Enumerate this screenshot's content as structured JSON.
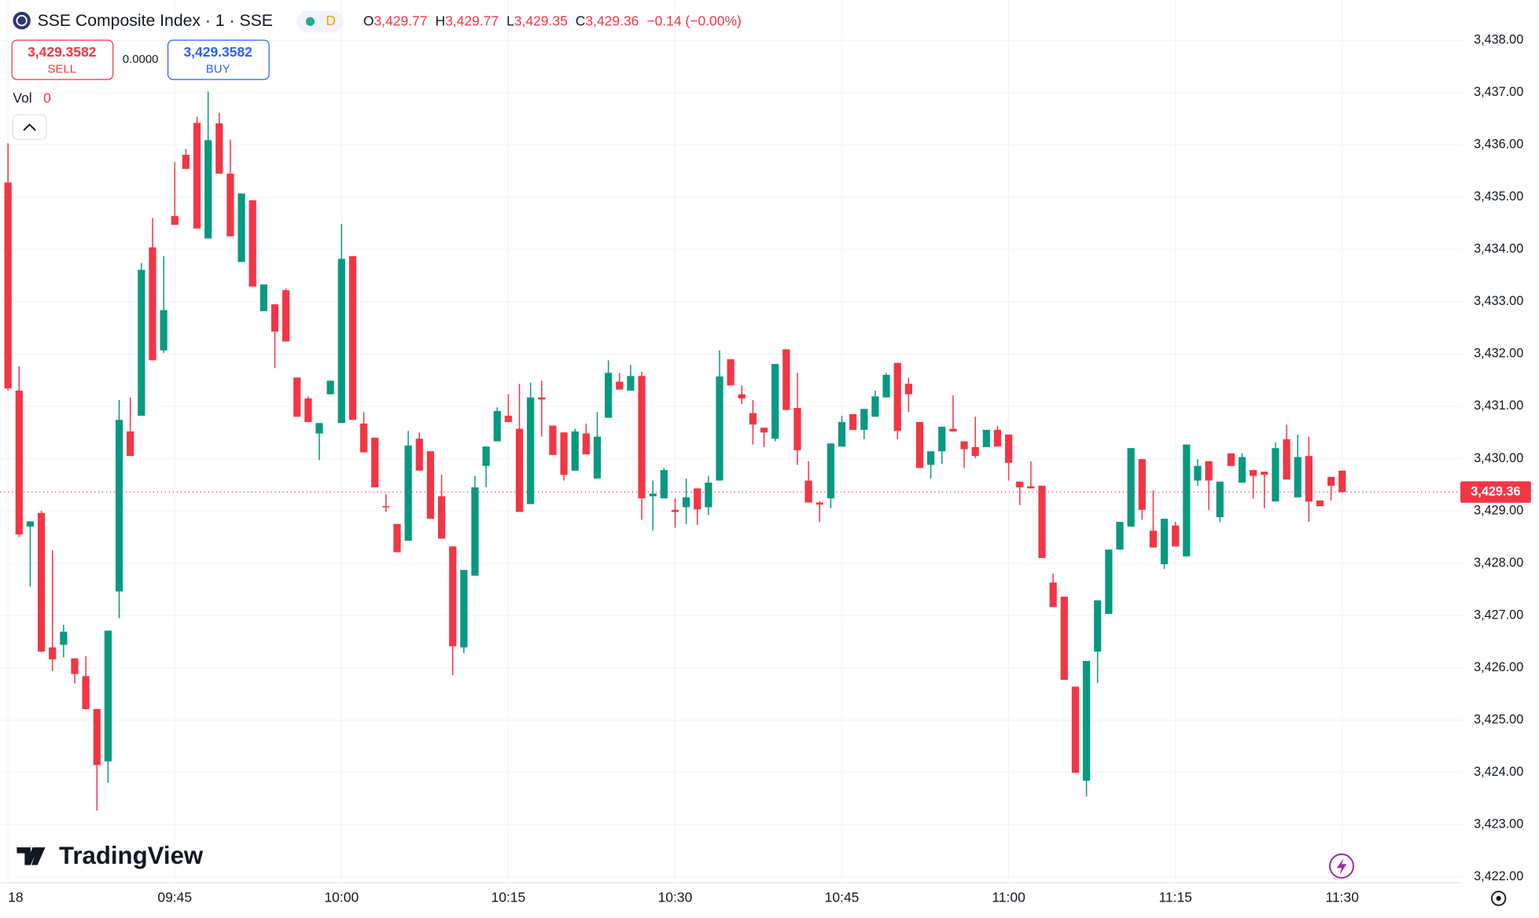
{
  "header": {
    "symbol": "SSE Composite Index · 1 · SSE",
    "interval_badge": "D",
    "ohlc": [
      {
        "key": "O",
        "value": "3,429.77"
      },
      {
        "key": "H",
        "value": "3,429.77"
      },
      {
        "key": "L",
        "value": "3,429.35"
      },
      {
        "key": "C",
        "value": "3,429.36"
      }
    ],
    "change": "−0.14 (−0.00%)"
  },
  "trade": {
    "sell_price": "3,429.3582",
    "sell_label": "SELL",
    "spread": "0.0000",
    "buy_price": "3,429.3582",
    "buy_label": "BUY"
  },
  "volume": {
    "label": "Vol",
    "value": "0"
  },
  "logo": "TradingView",
  "chart_data": {
    "type": "candlestick",
    "categories": [
      "18",
      null,
      null,
      null,
      null,
      null,
      null,
      null,
      null,
      null,
      null,
      null,
      null,
      null,
      null,
      "09:45",
      null,
      null,
      null,
      null,
      null,
      null,
      null,
      null,
      null,
      null,
      null,
      null,
      null,
      null,
      "10:00",
      null,
      null,
      null,
      null,
      null,
      null,
      null,
      null,
      null,
      null,
      null,
      null,
      null,
      null,
      "10:15",
      null,
      null,
      null,
      null,
      null,
      null,
      null,
      null,
      null,
      null,
      null,
      null,
      null,
      null,
      "10:30",
      null,
      null,
      null,
      null,
      null,
      null,
      null,
      null,
      null,
      null,
      null,
      null,
      null,
      null,
      "10:45",
      null,
      null,
      null,
      null,
      null,
      null,
      null,
      null,
      null,
      null,
      null,
      null,
      null,
      null,
      "11:00",
      null,
      null,
      null,
      null,
      null,
      null,
      null,
      null,
      null,
      null,
      null,
      null,
      null,
      null,
      "11:15",
      null,
      null,
      null,
      null,
      null,
      null,
      null,
      null,
      null,
      null,
      null,
      null,
      null,
      null,
      "11:30"
    ],
    "open": [
      3435.28,
      3431.3,
      3428.7,
      3428.96,
      3426.39,
      3426.44,
      3426.18,
      3425.84,
      3425.21,
      3424.21,
      3427.46,
      3430.52,
      3430.82,
      3434.04,
      3432.07,
      3434.64,
      3435.81,
      3436.42,
      3434.21,
      3436.41,
      3435.45,
      3433.76,
      3434.94,
      3432.82,
      3432.95,
      3433.22,
      3431.55,
      3431.15,
      3430.48,
      3431.23,
      3430.68,
      3433.87,
      3430.67,
      3430.4,
      3429.09,
      3428.75,
      3428.43,
      3430.38,
      3430.14,
      3429.28,
      3428.32,
      3426.39,
      3427.76,
      3429.86,
      3430.33,
      3430.82,
      3430.57,
      3429.13,
      3431.17,
      3430.63,
      3430.5,
      3429.77,
      3430.48,
      3429.62,
      3430.78,
      3431.47,
      3431.3,
      3431.58,
      3429.28,
      3429.24,
      3429.02,
      3429.07,
      3429.43,
      3429.07,
      3429.58,
      3431.9,
      3431.23,
      3430.87,
      3430.59,
      3430.38,
      3432.09,
      3430.97,
      3429.58,
      3429.16,
      3429.24,
      3430.23,
      3430.85,
      3430.55,
      3430.8,
      3431.17,
      3431.83,
      3431.43,
      3430.7,
      3429.88,
      3430.14,
      3430.57,
      3430.33,
      3430.22,
      3430.22,
      3430.55,
      3430.46,
      3429.56,
      3429.47,
      3429.48,
      3427.63,
      3427.36,
      3425.64,
      3423.84,
      3426.31,
      3427.03,
      3428.26,
      3428.7,
      3429.99,
      3428.62,
      3427.98,
      3428.72,
      3428.13,
      3429.58,
      3429.95,
      3428.88,
      3430.1,
      3429.54,
      3429.78,
      3429.75,
      3429.18,
      3430.37,
      3429.26,
      3430.05,
      3429.2,
      3429.65,
      3429.77
    ],
    "high": [
      3436.03,
      3431.77,
      3428.8,
      3429.0,
      3428.25,
      3426.82,
      3426.18,
      3426.22,
      3425.21,
      3426.71,
      3431.12,
      3431.17,
      3433.74,
      3434.6,
      3433.87,
      3435.67,
      3435.92,
      3436.54,
      3437.02,
      3436.61,
      3436.1,
      3435.07,
      3434.94,
      3433.33,
      3432.95,
      3433.25,
      3431.55,
      3431.19,
      3430.68,
      3431.49,
      3434.49,
      3433.87,
      3430.89,
      3430.4,
      3429.32,
      3428.75,
      3430.53,
      3430.5,
      3430.14,
      3429.69,
      3428.32,
      3427.87,
      3429.67,
      3430.23,
      3430.98,
      3431.23,
      3431.43,
      3431.45,
      3431.49,
      3430.63,
      3430.5,
      3430.57,
      3430.67,
      3430.89,
      3431.88,
      3431.64,
      3431.79,
      3431.66,
      3429.58,
      3429.82,
      3429.24,
      3429.62,
      3429.43,
      3429.67,
      3432.07,
      3431.9,
      3431.4,
      3431.12,
      3430.59,
      3431.81,
      3432.09,
      3431.64,
      3429.95,
      3429.18,
      3430.29,
      3430.82,
      3430.85,
      3430.95,
      3431.3,
      3431.64,
      3431.83,
      3431.55,
      3430.7,
      3430.14,
      3430.61,
      3431.21,
      3430.33,
      3430.8,
      3430.55,
      3430.63,
      3430.46,
      3429.56,
      3429.95,
      3429.48,
      3427.8,
      3427.36,
      3425.64,
      3426.13,
      3427.29,
      3428.26,
      3428.79,
      3430.2,
      3429.99,
      3429.39,
      3428.85,
      3428.79,
      3430.27,
      3429.99,
      3429.95,
      3429.56,
      3430.1,
      3430.1,
      3429.78,
      3429.75,
      3430.31,
      3430.65,
      3430.46,
      3430.42,
      3429.2,
      3429.65,
      3429.77
    ],
    "low": [
      3431.3,
      3428.5,
      3427.55,
      3426.3,
      3425.94,
      3426.2,
      3425.7,
      3425.2,
      3423.27,
      3423.8,
      3426.95,
      3430.05,
      3430.82,
      3431.88,
      3432.02,
      3434.47,
      3435.54,
      3434.4,
      3434.21,
      3435.45,
      3434.25,
      3433.76,
      3433.29,
      3432.82,
      3431.73,
      3432.24,
      3430.8,
      3430.7,
      3429.97,
      3431.23,
      3430.68,
      3430.74,
      3430.12,
      3429.45,
      3428.98,
      3428.21,
      3428.43,
      3429.77,
      3428.85,
      3428.47,
      3425.86,
      3426.28,
      3427.76,
      3429.45,
      3430.33,
      3430.7,
      3428.98,
      3429.13,
      3430.42,
      3430.07,
      3429.58,
      3429.77,
      3430.08,
      3429.62,
      3430.78,
      3431.32,
      3431.3,
      3428.83,
      3428.62,
      3429.24,
      3428.68,
      3428.75,
      3428.73,
      3428.92,
      3429.58,
      3431.4,
      3431.04,
      3430.27,
      3430.22,
      3430.33,
      3430.93,
      3429.88,
      3429.16,
      3428.79,
      3429.05,
      3430.23,
      3430.55,
      3430.37,
      3430.8,
      3431.17,
      3430.37,
      3430.89,
      3429.82,
      3429.62,
      3429.9,
      3430.52,
      3429.82,
      3430.01,
      3430.22,
      3430.23,
      3429.58,
      3429.11,
      3429.43,
      3428.1,
      3427.16,
      3425.77,
      3423.99,
      3423.54,
      3425.71,
      3427.03,
      3428.26,
      3428.7,
      3428.83,
      3428.3,
      3427.89,
      3428.32,
      3428.13,
      3429.48,
      3429.02,
      3428.79,
      3429.86,
      3429.54,
      3429.24,
      3429.05,
      3429.18,
      3429.6,
      3429.26,
      3428.79,
      3429.09,
      3429.2,
      3429.35
    ],
    "close": [
      3431.34,
      3428.55,
      3428.8,
      3426.31,
      3426.16,
      3426.69,
      3425.88,
      3425.21,
      3424.14,
      3426.71,
      3430.74,
      3430.05,
      3433.61,
      3431.88,
      3432.84,
      3434.47,
      3435.54,
      3434.4,
      3436.09,
      3435.45,
      3434.25,
      3435.07,
      3433.29,
      3433.33,
      3432.43,
      3432.24,
      3430.8,
      3430.7,
      3430.68,
      3431.49,
      3433.82,
      3430.74,
      3430.12,
      3429.45,
      3429.07,
      3428.21,
      3430.25,
      3429.77,
      3428.85,
      3428.47,
      3426.41,
      3427.87,
      3429.45,
      3430.23,
      3430.91,
      3430.7,
      3428.98,
      3431.17,
      3431.13,
      3430.07,
      3429.69,
      3430.52,
      3430.08,
      3430.42,
      3431.64,
      3431.32,
      3431.58,
      3429.24,
      3429.33,
      3429.78,
      3428.98,
      3429.26,
      3429.03,
      3429.54,
      3431.57,
      3431.4,
      3431.15,
      3430.65,
      3430.5,
      3431.81,
      3430.93,
      3430.16,
      3429.16,
      3429.12,
      3430.29,
      3430.7,
      3430.55,
      3430.95,
      3431.19,
      3431.6,
      3430.53,
      3431.23,
      3429.82,
      3430.14,
      3430.61,
      3430.52,
      3430.18,
      3430.05,
      3430.55,
      3430.23,
      3429.92,
      3429.45,
      3429.43,
      3428.1,
      3427.16,
      3425.77,
      3423.99,
      3426.13,
      3427.29,
      3428.26,
      3428.79,
      3430.2,
      3429.02,
      3428.3,
      3428.85,
      3428.32,
      3430.27,
      3429.86,
      3429.58,
      3429.56,
      3429.86,
      3430.03,
      3429.67,
      3429.69,
      3430.2,
      3429.6,
      3430.03,
      3429.18,
      3429.09,
      3429.48,
      3429.36
    ],
    "up_color": "#089981",
    "down_color": "#f23645",
    "ylim": [
      3421.89,
      3438.77
    ],
    "yticks": [
      {
        "value": 3422,
        "label": "3,422.00"
      },
      {
        "value": 3423,
        "label": "3,423.00"
      },
      {
        "value": 3424,
        "label": "3,424.00"
      },
      {
        "value": 3425,
        "label": "3,425.00"
      },
      {
        "value": 3426,
        "label": "3,426.00"
      },
      {
        "value": 3427,
        "label": "3,427.00"
      },
      {
        "value": 3428,
        "label": "3,428.00"
      },
      {
        "value": 3429,
        "label": "3,429.00"
      },
      {
        "value": 3430,
        "label": "3,430.00"
      },
      {
        "value": 3431,
        "label": "3,431.00"
      },
      {
        "value": 3432,
        "label": "3,432.00"
      },
      {
        "value": 3433,
        "label": "3,433.00"
      },
      {
        "value": 3434,
        "label": "3,434.00"
      },
      {
        "value": 3435,
        "label": "3,435.00"
      },
      {
        "value": 3436,
        "label": "3,436.00"
      },
      {
        "value": 3437,
        "label": "3,437.00"
      },
      {
        "value": 3438,
        "label": "3,438.00"
      }
    ],
    "grid": true,
    "last_price": {
      "value": 3429.36,
      "label": "3,429.36"
    }
  }
}
